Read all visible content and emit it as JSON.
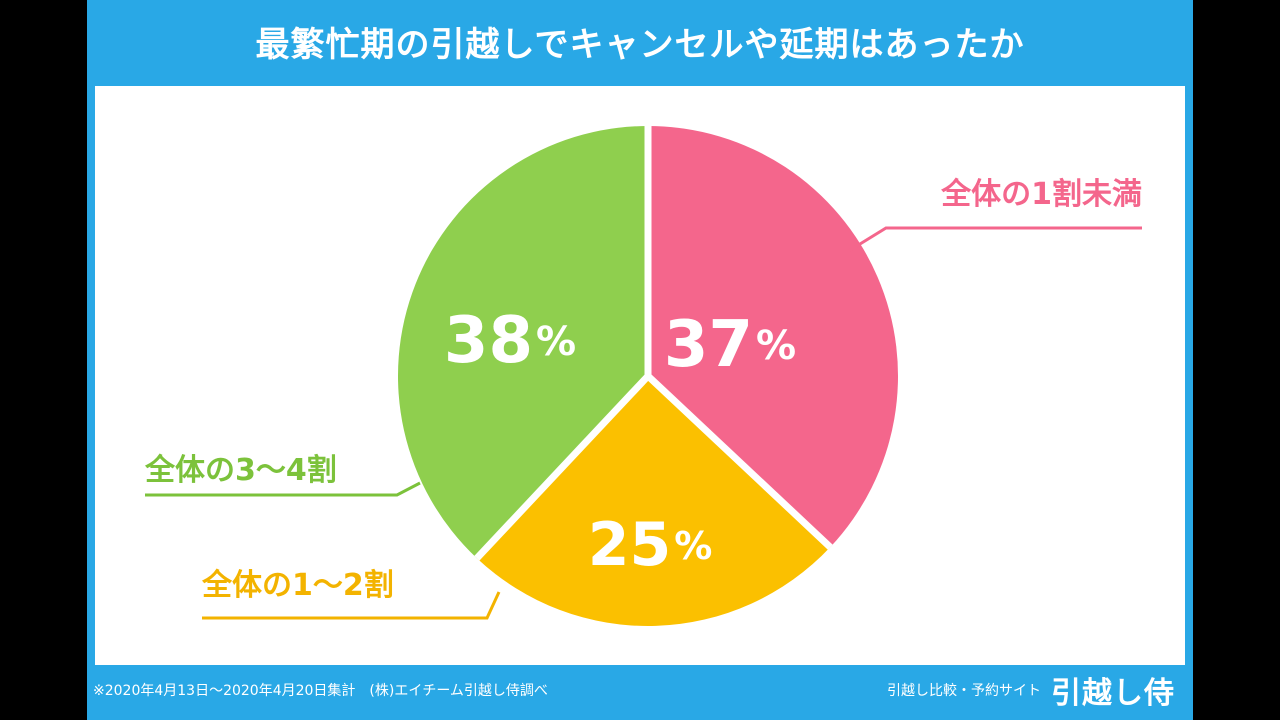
{
  "title": "最繁忙期の引越しでキャンセルや延期はあったか",
  "footer": {
    "note": "※2020年4月13日〜2020年4月20日集計　(株)エイチーム引越し侍調べ",
    "brand_tagline": "引越し比較・予約サイト",
    "brand_logo": "引越し侍"
  },
  "colors": {
    "frame": "#29a8e6",
    "panel": "#ffffff"
  },
  "chart_data": {
    "type": "pie",
    "title": "最繁忙期の引越しでキャンセルや延期はあったか",
    "slices": [
      {
        "label": "全体の1割未満",
        "value": 37,
        "color": "#f4668c"
      },
      {
        "label": "全体の1〜2割",
        "value": 25,
        "color": "#fbc000"
      },
      {
        "label": "全体の3〜4割",
        "value": 38,
        "color": "#8fcf4e"
      }
    ],
    "value_suffix": "%",
    "start": "12 o'clock",
    "direction": "clockwise",
    "legend": "callout labels"
  }
}
